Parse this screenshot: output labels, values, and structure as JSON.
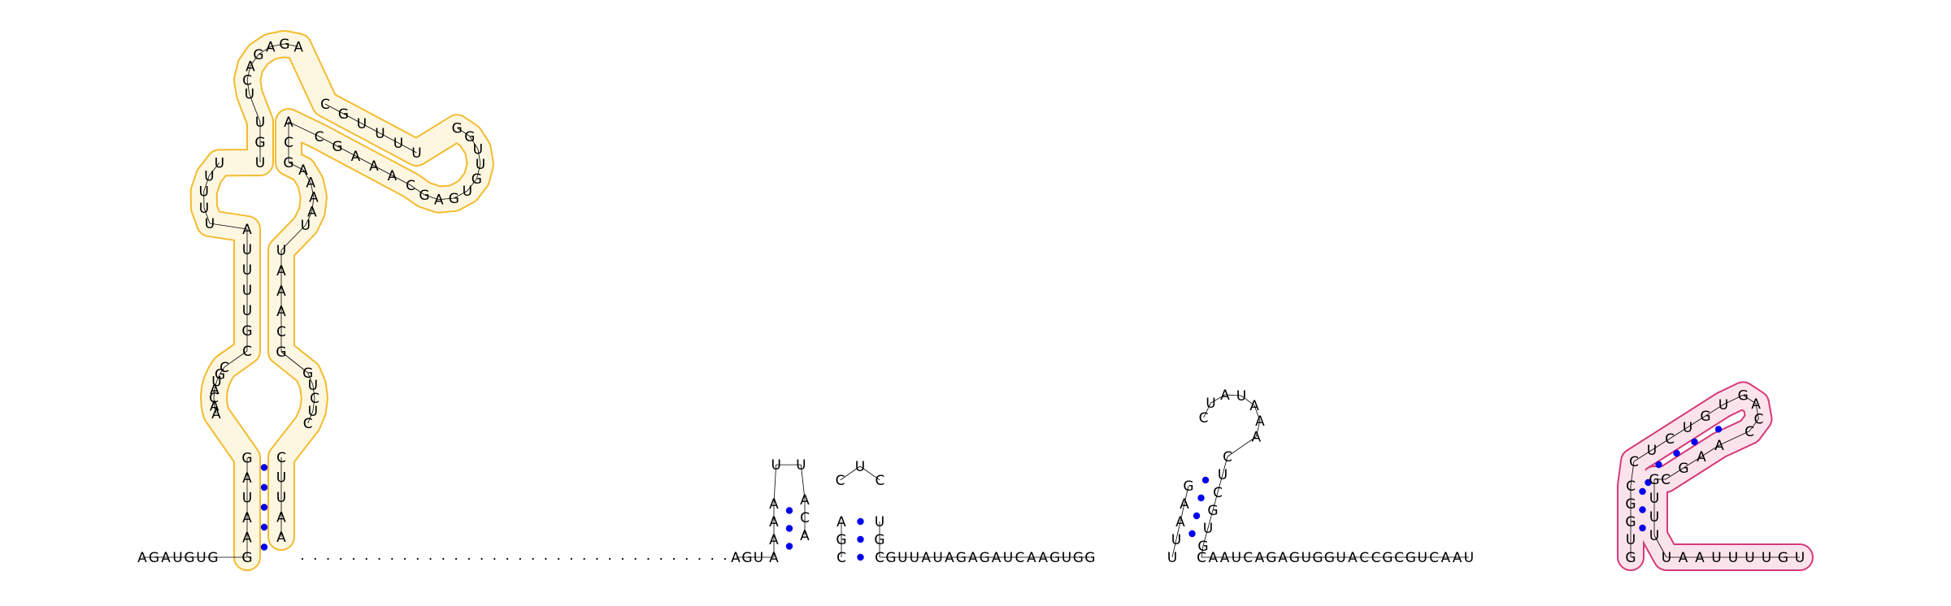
{
  "diagram": {
    "type": "rna-secondary-structure",
    "base_pair_color": "#0000ee",
    "highlight_colors": {
      "orange_outline": "#f2b417",
      "orange_fill": "#fdf7e2",
      "orange_solid": "#f5ac0f",
      "pink_outline": "#d63a78",
      "pink_fill": "#fbe3ec"
    },
    "segments": {
      "leader": "AGAUGUG",
      "hairpin1_stem_5p": "GAAUAG",
      "hairpin1_interior_5p": "AACAUGC",
      "hairpin1_stem2_5p": "CGUUUUA",
      "hairpin1_bulge_5p": "UUUUU",
      "hairpin1_stem3_5p": "UGU",
      "hairpin1_loop_5p": "UCAGAGA",
      "hairpin1_arm_5p": "CGUUUU",
      "hairpin1_arm_loop": "GGUUGUGAG",
      "hairpin1_arm_3p": "CAAAGC",
      "hairpin1_stem3_3p": "ACG",
      "hairpin1_bulge_3p": "AAAAU",
      "hairpin1_stem2_3p": "UAAACG",
      "hairpin1_interior_3p": "GUCUC",
      "hairpin1_stem_3p": "CUUAA",
      "linker": "AGU",
      "hairpin2": "AAAAUUACA",
      "hairpin3": "CGACUCUGC",
      "mid_span": "GUUAUAGAGAUCAAGUGG",
      "hairpin4": "UUAAGCUAUAAACUCGUG",
      "post_span": "CAAUCAGAGUGGUACCGCGUCAAU",
      "hairpin5": "GUGGCCUCUGUGACCAAGCGUUU",
      "trailer": "UAAUUUUGU"
    }
  }
}
